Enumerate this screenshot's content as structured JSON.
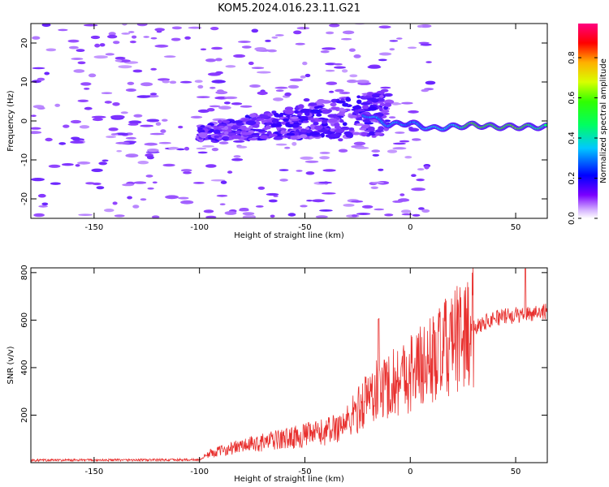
{
  "figure": {
    "title": "KOM5.2024.016.23.11.G21"
  },
  "chart_data": [
    {
      "type": "heatmap",
      "xlabel": "Height of straight line (km)",
      "ylabel": "Frequency (Hz)",
      "xlim": [
        -180,
        65
      ],
      "ylim": [
        -25,
        25
      ],
      "xticks": [
        -150,
        -100,
        -50,
        0,
        50
      ],
      "yticks": [
        20,
        10,
        0,
        -10,
        -20
      ],
      "colorbar": {
        "label": "Normalized spectral amplitude",
        "range": [
          0,
          0.97
        ],
        "ticks": [
          "0.0",
          "0.2",
          "0.4",
          "0.6",
          "0.8"
        ],
        "colormap": "rainbow (violet-blue-cyan-green-yellow-red-magenta)"
      },
      "description_values": {
        "signal_track": [
          {
            "x": -20,
            "y": 1.5,
            "amp": 0.35
          },
          {
            "x": -10,
            "y": -1.0,
            "amp": 0.35
          },
          {
            "x": 0,
            "y": -0.5,
            "amp": 0.3
          },
          {
            "x": 10,
            "y": -2.0,
            "amp": 0.4
          },
          {
            "x": 20,
            "y": -1.5,
            "amp": 0.4
          },
          {
            "x": 30,
            "y": -1.0,
            "amp": 0.6
          },
          {
            "x": 40,
            "y": -1.5,
            "amp": 0.55
          },
          {
            "x": 50,
            "y": -1.5,
            "amp": 0.6
          },
          {
            "x": 60,
            "y": -1.5,
            "amp": 0.5
          }
        ]
      }
    },
    {
      "type": "line",
      "xlabel": "Height of straight line (km)",
      "ylabel": "SNR (v/v)",
      "xlim": [
        -180,
        65
      ],
      "ylim": [
        0,
        820
      ],
      "xticks": [
        -150,
        -100,
        -50,
        0,
        50
      ],
      "yticks": [
        200,
        400,
        600,
        800
      ],
      "color": "#e8302e",
      "envelope": [
        {
          "x": -180,
          "y": 10
        },
        {
          "x": -100,
          "y": 12
        },
        {
          "x": -95,
          "y": 40
        },
        {
          "x": -80,
          "y": 70
        },
        {
          "x": -60,
          "y": 100
        },
        {
          "x": -40,
          "y": 130
        },
        {
          "x": -30,
          "y": 170
        },
        {
          "x": -25,
          "y": 220
        },
        {
          "x": -20,
          "y": 280
        },
        {
          "x": -10,
          "y": 330
        },
        {
          "x": 0,
          "y": 380
        },
        {
          "x": 10,
          "y": 430
        },
        {
          "x": 20,
          "y": 500
        },
        {
          "x": 30,
          "y": 570
        },
        {
          "x": 40,
          "y": 610
        },
        {
          "x": 50,
          "y": 620
        },
        {
          "x": 65,
          "y": 640
        }
      ]
    }
  ]
}
